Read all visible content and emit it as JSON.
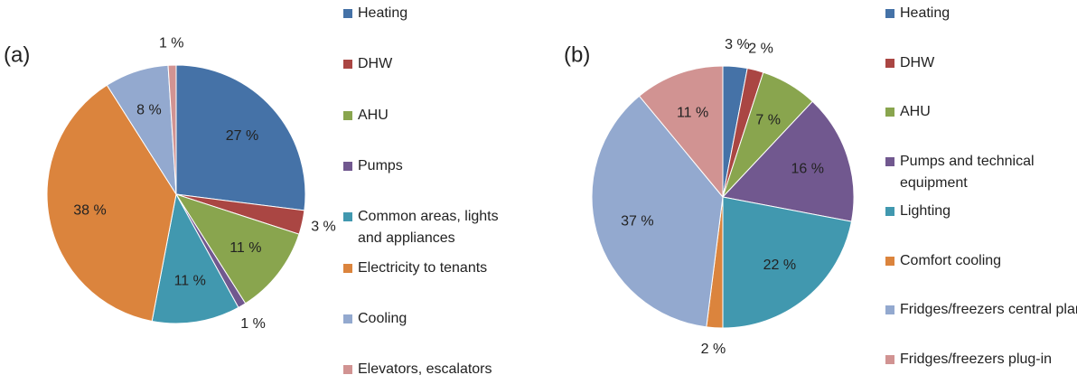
{
  "chart_data": [
    {
      "type": "pie",
      "title": "(a)",
      "categories": [
        "Heating",
        "DHW",
        "AHU",
        "Pumps",
        "Common areas, lights and appliances",
        "Electricity to tenants",
        "Cooling",
        "Elevators, escalators"
      ],
      "values": [
        27,
        3,
        11,
        1,
        11,
        38,
        8,
        1
      ],
      "value_labels": [
        "27 %",
        "3 %",
        "11 %",
        "1 %",
        "11 %",
        "38 %",
        "8 %",
        "1 %"
      ],
      "colors": [
        "#4572a7",
        "#aa4643",
        "#89a54e",
        "#71588f",
        "#4198af",
        "#db843d",
        "#93a9cf",
        "#d19392"
      ]
    },
    {
      "type": "pie",
      "title": "(b)",
      "categories": [
        "Heating",
        "DHW",
        "AHU",
        "Pumps and technical equipment",
        "Lighting",
        "Comfort cooling",
        "Fridges/freezers central plant",
        "Fridges/freezers plug-in"
      ],
      "values": [
        3,
        2,
        7,
        16,
        22,
        2,
        37,
        11
      ],
      "value_labels": [
        "3 %",
        "2 %",
        "7 %",
        "16 %",
        "22 %",
        "2 %",
        "37 %",
        "11 %"
      ],
      "colors": [
        "#4572a7",
        "#aa4643",
        "#89a54e",
        "#71588f",
        "#4198af",
        "#db843d",
        "#93a9cf",
        "#d19392"
      ]
    }
  ]
}
